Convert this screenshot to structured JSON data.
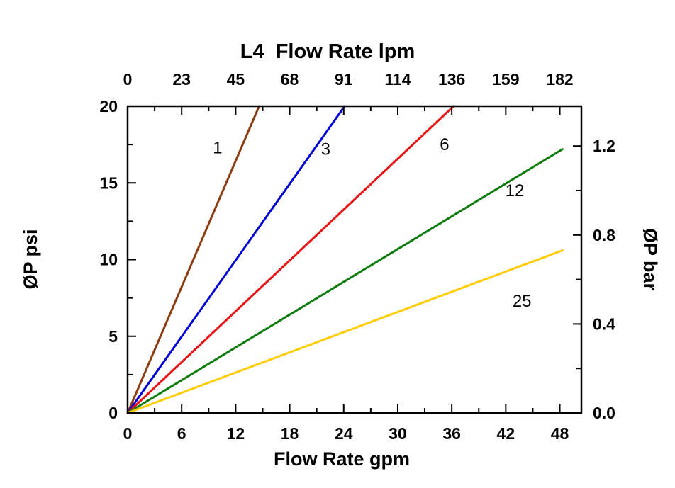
{
  "chart_data": {
    "type": "line",
    "title": "L4  Flow Rate lpm",
    "grid": false,
    "legend": false,
    "background": "#ffffff",
    "axis_color": "#000000",
    "x_bottom": {
      "label": "Flow Rate gpm",
      "ticks": [
        0,
        6,
        12,
        18,
        24,
        30,
        36,
        42,
        48
      ],
      "minor_ticks": [
        3,
        9,
        15,
        21,
        27,
        33,
        39,
        45
      ],
      "range": [
        0,
        50.4
      ]
    },
    "x_top": {
      "label": "L4 Flow Rate lpm",
      "tick_labels": [
        "0",
        "23",
        "45",
        "68",
        "91",
        "114",
        "136",
        "159",
        "182"
      ]
    },
    "y_left": {
      "label": "ØP psi",
      "ticks": [
        0,
        5,
        10,
        15,
        20
      ],
      "minor_ticks": [
        2.5,
        7.5,
        12.5,
        17.5
      ],
      "range": [
        0,
        20
      ]
    },
    "y_right": {
      "label": "ØP bar",
      "ticks": [
        0.0,
        0.4,
        0.8,
        1.2
      ],
      "minor_ticks": [
        0.2,
        0.6,
        1.0
      ],
      "psi_per_bar": 14.5038
    },
    "series": [
      {
        "name": "1",
        "color": "#8c3c0f",
        "points": [
          [
            0,
            0
          ],
          [
            14.6,
            20
          ]
        ],
        "label_pos": [
          10.0,
          17.3
        ]
      },
      {
        "name": "3",
        "color": "#0000dd",
        "points": [
          [
            0,
            0
          ],
          [
            24.1,
            20
          ]
        ],
        "label_pos": [
          22.0,
          17.2
        ]
      },
      {
        "name": "6",
        "color": "#ee1111",
        "points": [
          [
            0,
            0
          ],
          [
            36.2,
            20
          ]
        ],
        "label_pos": [
          35.2,
          17.5
        ]
      },
      {
        "name": "12",
        "color": "#0c7c0c",
        "points": [
          [
            0,
            0
          ],
          [
            48.3,
            17.2
          ]
        ],
        "label_pos": [
          43.0,
          14.5
        ]
      },
      {
        "name": "25",
        "color": "#ffcc00",
        "points": [
          [
            0,
            0
          ],
          [
            48.3,
            10.6
          ]
        ],
        "label_pos": [
          43.8,
          7.3
        ]
      }
    ]
  }
}
